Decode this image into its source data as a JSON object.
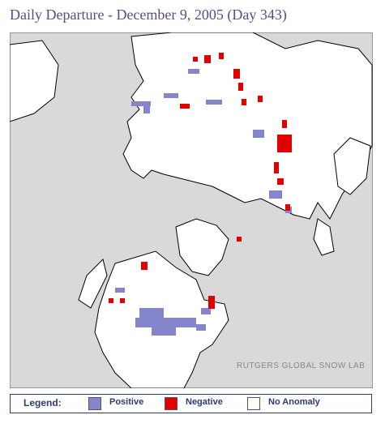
{
  "header": {
    "title": "Daily Departure - December 9, 2005 (Day 343)"
  },
  "map": {
    "credit": "RUTGERS GLOBAL SNOW LAB"
  },
  "legend": {
    "title": "Legend:",
    "items": [
      {
        "label": "Positive",
        "color": "#8585cc"
      },
      {
        "label": "Negative",
        "color": "#e00000"
      },
      {
        "label": "No Anomaly",
        "color": "#ffffff"
      }
    ]
  }
}
